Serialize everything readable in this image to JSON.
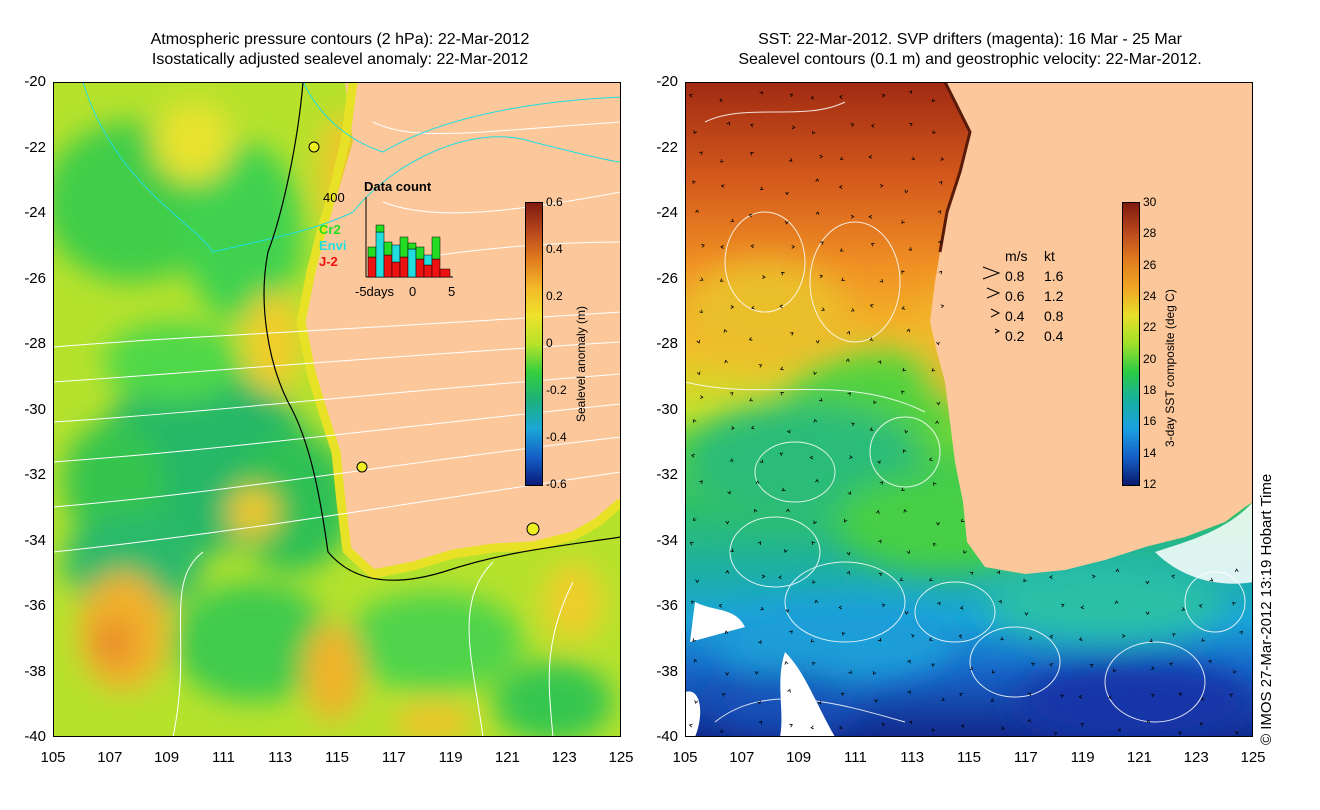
{
  "left_panel": {
    "title_line1": "Atmospheric pressure contours (2 hPa): 22-Mar-2012",
    "title_line2": "Isostatically adjusted sealevel anomaly: 22-Mar-2012",
    "colorbar": {
      "label": "Sealevel anomaly (m)",
      "ticks": [
        "0.6",
        "0.4",
        "0.2",
        "0",
        "-0.2",
        "-0.4",
        "-0.6"
      ]
    },
    "inset": {
      "title": "Data count",
      "ymax_label": "400",
      "series_labels": [
        "Cr2",
        "Envi",
        "J-2"
      ],
      "series_colors": [
        "#22dd22",
        "#22dddd",
        "#ee1111"
      ],
      "x_labels": [
        "-5days",
        "0",
        "5"
      ]
    }
  },
  "right_panel": {
    "title_line1": "SST: 22-Mar-2012. SVP drifters (magenta): 16 Mar - 25 Mar",
    "title_line2": "Sealevel contours (0.1 m) and geostrophic velocity: 22-Mar-2012.",
    "colorbar": {
      "label": "3-day SST composite (deg C)",
      "ticks": [
        "30",
        "28",
        "26",
        "24",
        "22",
        "20",
        "18",
        "16",
        "14",
        "12"
      ]
    },
    "velocity_legend": {
      "header_ms": "m/s",
      "header_kt": "kt",
      "rows": [
        {
          "ms": "0.8",
          "kt": "1.6"
        },
        {
          "ms": "0.6",
          "kt": "1.2"
        },
        {
          "ms": "0.4",
          "kt": "0.8"
        },
        {
          "ms": "0.2",
          "kt": "0.4"
        }
      ]
    }
  },
  "axes": {
    "y_labels": [
      "-20",
      "-22",
      "-24",
      "-26",
      "-28",
      "-30",
      "-32",
      "-34",
      "-36",
      "-38",
      "-40"
    ],
    "x_labels": [
      "105",
      "107",
      "109",
      "111",
      "113",
      "115",
      "117",
      "119",
      "121",
      "123",
      "125"
    ]
  },
  "colors": {
    "land": "#fcc89b",
    "coast_yellow": "#eeee22"
  },
  "copyright": "© IMOS 27-Mar-2012 13:19 Hobart Time"
}
